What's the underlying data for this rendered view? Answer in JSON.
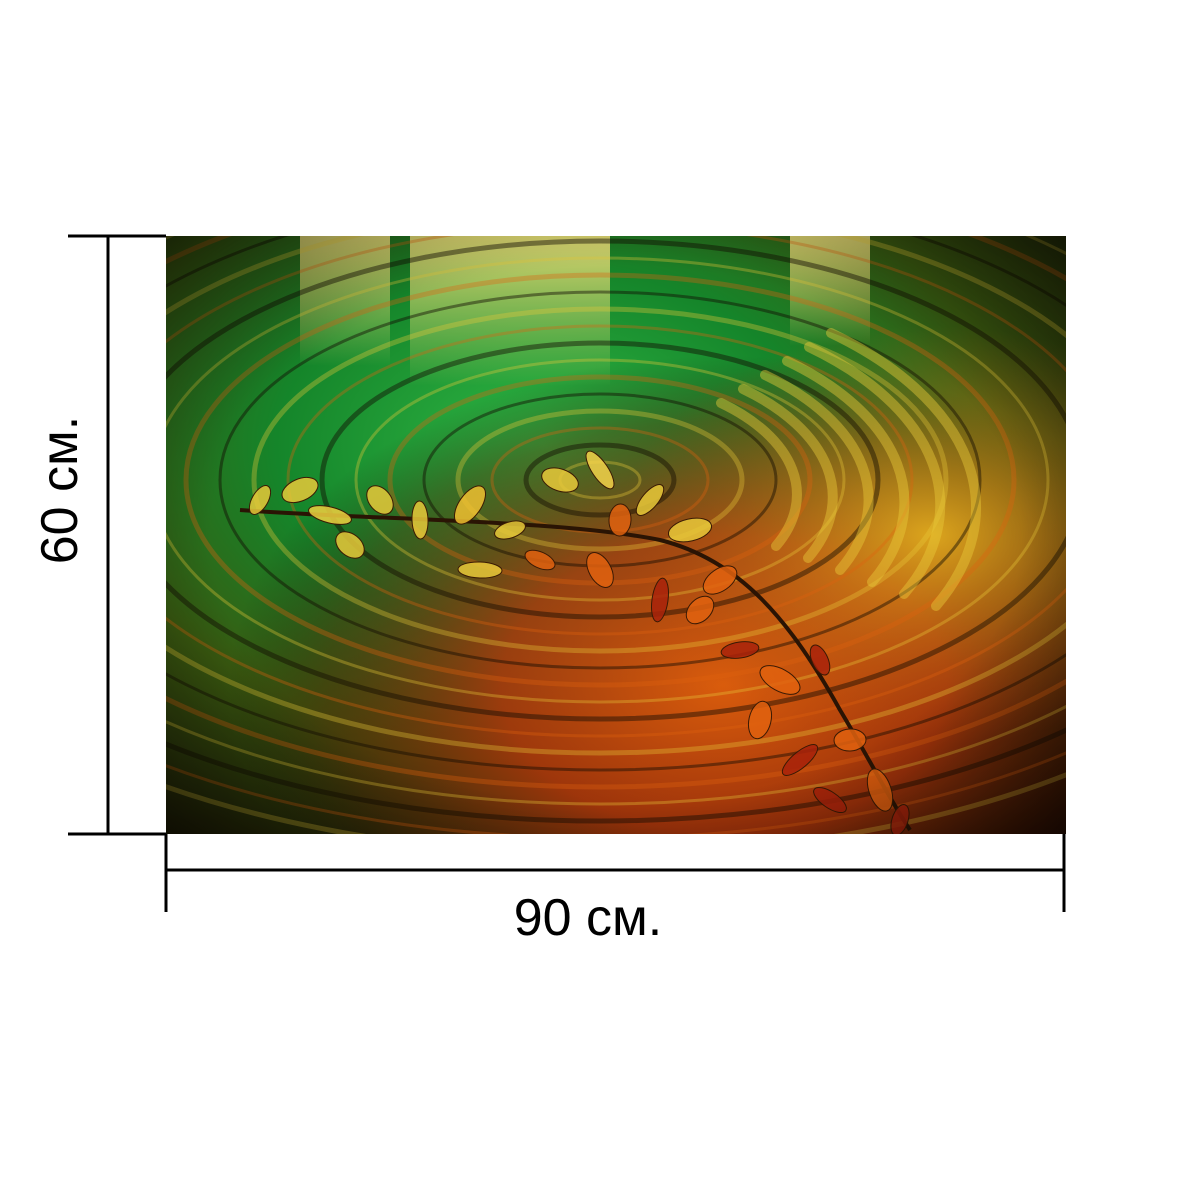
{
  "photo": {
    "subject": "water-ripple-with-autumn-leaves",
    "colors": {
      "green": "#1f9a2a",
      "deep_green": "#064d14",
      "yellow": "#e8c93a",
      "orange": "#e0620f",
      "red": "#a8220a",
      "dark": "#120c02"
    }
  },
  "dimensions": {
    "width_label": "90 см.",
    "height_label": "60 см."
  },
  "line_color": "#000000"
}
